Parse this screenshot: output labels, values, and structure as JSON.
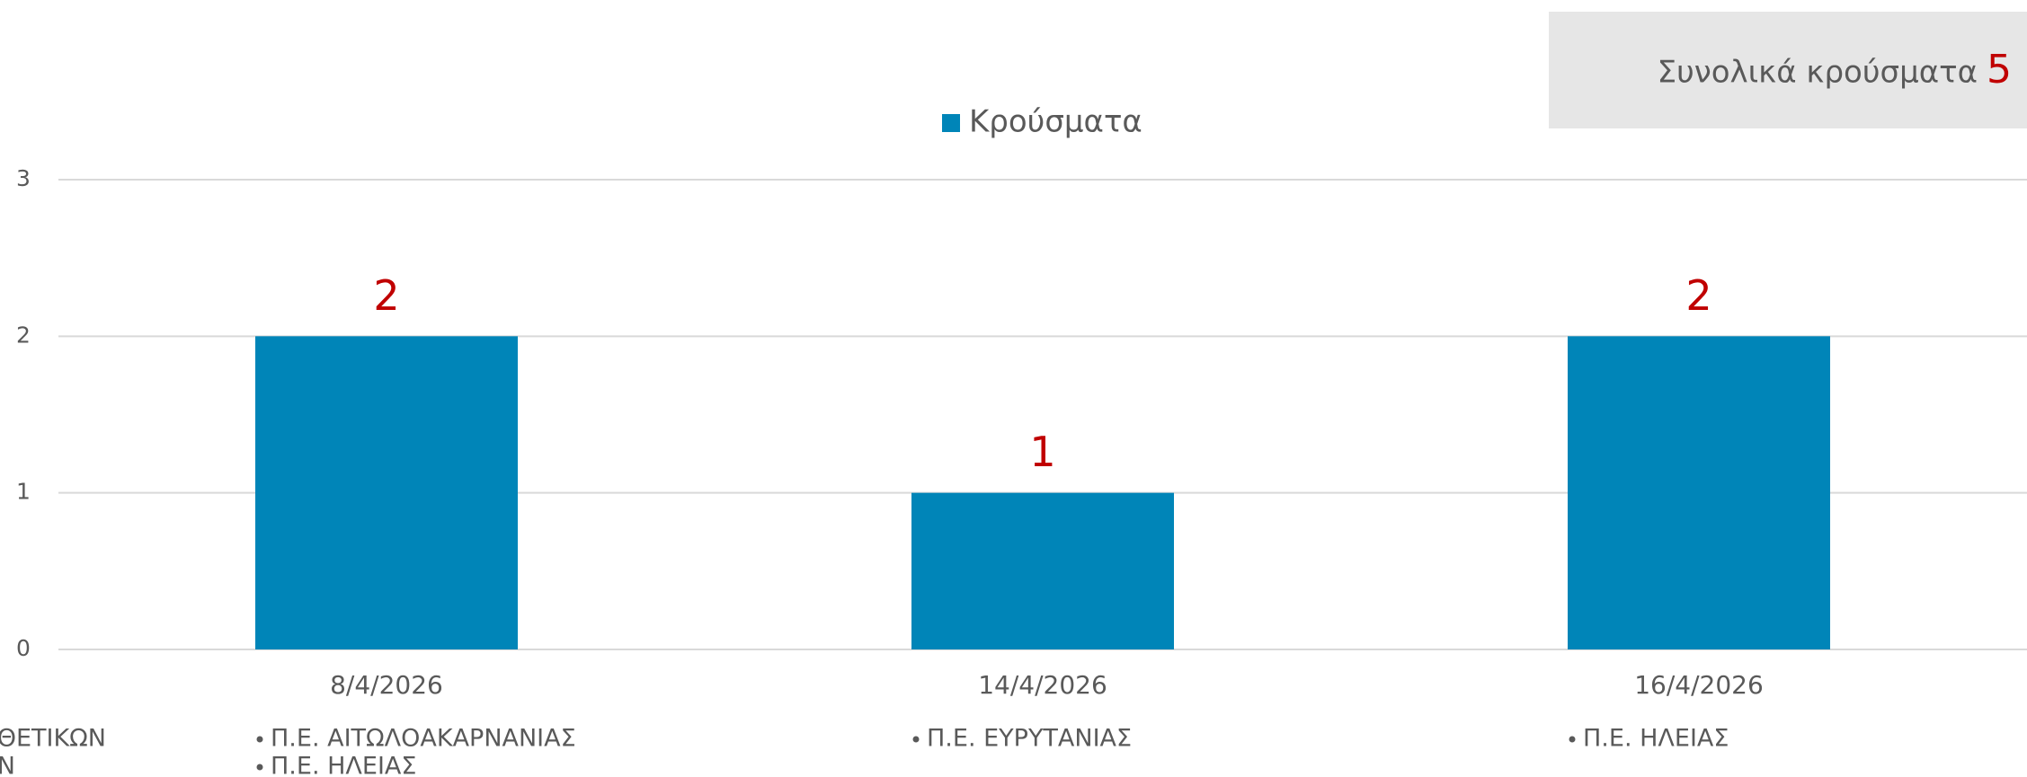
{
  "chart_data": {
    "type": "bar",
    "categories": [
      "8/4/2026",
      "14/4/2026",
      "16/4/2026"
    ],
    "series": [
      {
        "name": "Κρούσματα",
        "color": "#0085b8",
        "values": [
          2,
          1,
          2
        ]
      }
    ],
    "ylim": [
      0,
      3
    ],
    "yticks": [
      0,
      1,
      2,
      3
    ],
    "grid": true,
    "legend": "top"
  },
  "summary": {
    "label": "Συνολικά κρούσματα",
    "value": 5
  },
  "side_labels": [
    "ΘΕΤΙΚΩΝ",
    "Ν"
  ],
  "regions": [
    [
      "Π.Ε. ΑΙΤΩΛΟΑΚΑΡΝΑΝΙΑΣ",
      "Π.Ε. ΗΛΕΙΑΣ"
    ],
    [
      "Π.Ε. ΕΥΡΥΤΑΝΙΑΣ"
    ],
    [
      "Π.Ε. ΗΛΕΙΑΣ"
    ]
  ]
}
